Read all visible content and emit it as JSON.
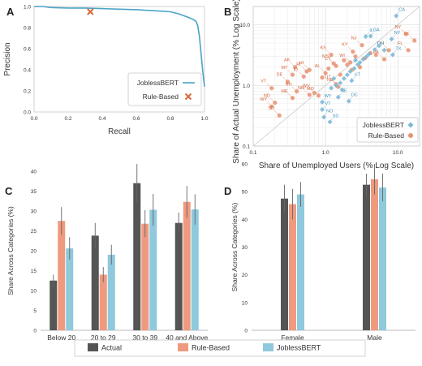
{
  "colors": {
    "actual": "#555555",
    "rule_based": "#ef9a7f",
    "joblessbert": "#8ec9dd",
    "pr_line": "#4aa3c6",
    "scatter_blue": "#7db9d6",
    "scatter_red": "#e69272",
    "label_blue": "#3d92bf",
    "label_red": "#d4633b",
    "error_bar": "#666666",
    "marker_x": "#d86a3c"
  },
  "chart_data": [
    {
      "id": "A",
      "type": "line",
      "panel_label": "A",
      "xlabel": "Recall",
      "ylabel": "Precision",
      "xlim": [
        0,
        1
      ],
      "ylim": [
        0,
        1
      ],
      "xticks": [
        "0.0",
        "0.2",
        "0.4",
        "0.6",
        "0.8",
        "1.0"
      ],
      "yticks": [
        "0.0",
        "0.2",
        "0.4",
        "0.6",
        "0.8",
        "1.0"
      ],
      "series": [
        {
          "name": "JoblessBERT",
          "x": [
            0.0,
            0.05,
            0.1,
            0.2,
            0.3,
            0.4,
            0.5,
            0.6,
            0.7,
            0.8,
            0.85,
            0.9,
            0.93,
            0.95,
            0.96,
            0.97,
            0.98,
            0.99,
            1.0
          ],
          "y": [
            1.0,
            1.0,
            0.99,
            0.985,
            0.985,
            0.98,
            0.975,
            0.97,
            0.96,
            0.95,
            0.93,
            0.9,
            0.88,
            0.86,
            0.82,
            0.72,
            0.55,
            0.38,
            0.24
          ]
        },
        {
          "name": "Rule-Based",
          "x": [
            0.33
          ],
          "y": [
            0.95
          ]
        }
      ],
      "legend": [
        "JoblessBERT",
        "Rule-Based"
      ],
      "legend_position": "bottom-right",
      "grid": false
    },
    {
      "id": "B",
      "type": "scatter",
      "panel_label": "B",
      "xlabel": "Share of Unemployed Users (% Log Scale)",
      "ylabel": "Share of Actual Unemployment (% Log Scale)",
      "xscale": "log",
      "yscale": "log",
      "xlim": [
        0.1,
        20
      ],
      "ylim": [
        0.1,
        20
      ],
      "xticks": [
        "0.1",
        "1.0",
        "10.0"
      ],
      "yticks": [
        "0.1",
        "1.0",
        "10.0"
      ],
      "grid": true,
      "diagonal": true,
      "legend": [
        "JoblessBERT",
        "Rule-Based"
      ],
      "legend_position": "bottom-right",
      "series": [
        {
          "name": "JoblessBERT",
          "points": [
            {
              "label": "CA",
              "x": 9.5,
              "y": 14
            },
            {
              "label": "GA",
              "x": 4.2,
              "y": 6.5
            },
            {
              "label": "IL",
              "x": 3.6,
              "y": 6.4
            },
            {
              "label": "NY",
              "x": 8.2,
              "y": 5.8
            },
            {
              "label": "OH",
              "x": 4.8,
              "y": 3.9
            },
            {
              "label": "TX",
              "x": 8.5,
              "y": 3.2
            },
            {
              "label": "UT",
              "x": 2.3,
              "y": 1.2
            },
            {
              "label": "NE",
              "x": 1.5,
              "y": 0.64
            },
            {
              "label": "DC",
              "x": 2.1,
              "y": 0.55
            },
            {
              "label": "VT",
              "x": 0.9,
              "y": 0.4
            },
            {
              "label": "NO",
              "x": 0.95,
              "y": 0.3
            },
            {
              "label": "SD",
              "x": 1.15,
              "y": 0.25
            },
            {
              "label": "WY",
              "x": 0.9,
              "y": 0.53
            },
            {
              "label": "",
              "x": 1.2,
              "y": 0.9
            },
            {
              "label": "",
              "x": 1.4,
              "y": 1.0
            },
            {
              "label": "",
              "x": 1.6,
              "y": 1.1
            },
            {
              "label": "",
              "x": 1.8,
              "y": 1.3
            },
            {
              "label": "",
              "x": 2.0,
              "y": 1.5
            },
            {
              "label": "",
              "x": 2.2,
              "y": 1.7
            },
            {
              "label": "",
              "x": 2.5,
              "y": 1.9
            },
            {
              "label": "",
              "x": 2.8,
              "y": 2.2
            },
            {
              "label": "",
              "x": 3.0,
              "y": 2.4
            },
            {
              "label": "",
              "x": 3.3,
              "y": 2.7
            },
            {
              "label": "",
              "x": 3.7,
              "y": 3.0
            },
            {
              "label": "",
              "x": 4.0,
              "y": 3.3
            },
            {
              "label": "",
              "x": 1.3,
              "y": 1.3
            },
            {
              "label": "",
              "x": 1.7,
              "y": 0.85
            },
            {
              "label": "",
              "x": 2.6,
              "y": 2.6
            },
            {
              "label": "",
              "x": 5.5,
              "y": 4.5
            },
            {
              "label": "",
              "x": 6.5,
              "y": 3.8
            }
          ]
        },
        {
          "name": "Rule-Based",
          "points": [
            {
              "label": "NY",
              "x": 13,
              "y": 7.0
            },
            {
              "label": "TX",
              "x": 17,
              "y": 5.5
            },
            {
              "label": "FL",
              "x": 14,
              "y": 3.8
            },
            {
              "label": "OH",
              "x": 7.5,
              "y": 3.8
            },
            {
              "label": "PA",
              "x": 6.5,
              "y": 2.7
            },
            {
              "label": "NJ",
              "x": 3.2,
              "y": 4.6
            },
            {
              "label": "KY",
              "x": 2.4,
              "y": 3.6
            },
            {
              "label": "KS",
              "x": 1.2,
              "y": 3.2
            },
            {
              "label": "WI",
              "x": 2.2,
              "y": 2.4
            },
            {
              "label": "MS",
              "x": 1.3,
              "y": 2.3
            },
            {
              "label": "CT",
              "x": 1.4,
              "y": 2.1
            },
            {
              "label": "AK",
              "x": 0.38,
              "y": 2.0
            },
            {
              "label": "HI",
              "x": 0.6,
              "y": 1.8
            },
            {
              "label": "RI",
              "x": 0.55,
              "y": 1.7
            },
            {
              "label": "MT",
              "x": 0.35,
              "y": 1.5
            },
            {
              "label": "ID",
              "x": 0.5,
              "y": 1.4
            },
            {
              "label": "AL",
              "x": 1.0,
              "y": 1.6
            },
            {
              "label": "DE",
              "x": 0.3,
              "y": 1.15
            },
            {
              "label": "UT",
              "x": 1.4,
              "y": 1.05
            },
            {
              "label": "NE",
              "x": 1.5,
              "y": 0.95
            },
            {
              "label": "VT",
              "x": 0.18,
              "y": 0.9
            },
            {
              "label": "NH",
              "x": 0.4,
              "y": 0.8
            },
            {
              "label": "WV",
              "x": 0.7,
              "y": 0.75
            },
            {
              "label": "NM",
              "x": 0.6,
              "y": 0.7
            },
            {
              "label": "MO",
              "x": 0.8,
              "y": 0.68
            },
            {
              "label": "ME",
              "x": 0.35,
              "y": 0.62
            },
            {
              "label": "ND",
              "x": 0.2,
              "y": 0.52
            },
            {
              "label": "WY",
              "x": 0.18,
              "y": 0.45
            },
            {
              "label": "SD",
              "x": 0.23,
              "y": 0.32
            },
            {
              "label": "",
              "x": 1.8,
              "y": 2.6
            },
            {
              "label": "",
              "x": 2.0,
              "y": 2.2
            },
            {
              "label": "",
              "x": 2.6,
              "y": 3.0
            },
            {
              "label": "",
              "x": 3.0,
              "y": 2.0
            },
            {
              "label": "",
              "x": 3.5,
              "y": 2.8
            },
            {
              "label": "",
              "x": 4.2,
              "y": 3.4
            },
            {
              "label": "",
              "x": 5.0,
              "y": 3.2
            },
            {
              "label": "",
              "x": 1.1,
              "y": 1.9
            },
            {
              "label": "",
              "x": 0.9,
              "y": 1.35
            },
            {
              "label": "",
              "x": 1.6,
              "y": 1.5
            },
            {
              "label": "",
              "x": 2.3,
              "y": 1.8
            }
          ]
        }
      ]
    },
    {
      "id": "C",
      "type": "bar",
      "panel_label": "C",
      "ylabel": "Share Across Categories (%)",
      "categories": [
        "Below 20",
        "20 to 29",
        "30 to 39",
        "40 and Above"
      ],
      "ylim": [
        0,
        40
      ],
      "yticks": [
        "0",
        "5",
        "10",
        "15",
        "20",
        "25",
        "30",
        "35",
        "40"
      ],
      "series": [
        {
          "name": "Actual",
          "values": [
            12.5,
            23.8,
            37,
            27
          ],
          "errors": [
            1.5,
            3.2,
            4.8,
            2.6
          ]
        },
        {
          "name": "Rule-Based",
          "values": [
            27.5,
            14,
            26.8,
            32.3
          ],
          "errors": [
            3.5,
            1.9,
            3.4,
            4.0
          ]
        },
        {
          "name": "JoblessBERT",
          "values": [
            20.6,
            19,
            30.3,
            30.4
          ],
          "errors": [
            2.8,
            2.5,
            4.0,
            3.8
          ]
        }
      ]
    },
    {
      "id": "D",
      "type": "bar",
      "panel_label": "D",
      "ylabel": "Share Across Categories (%)",
      "categories": [
        "Female",
        "Male"
      ],
      "ylim": [
        0,
        60
      ],
      "yticks": [
        "0",
        "10",
        "20",
        "30",
        "40",
        "50",
        "60"
      ],
      "series": [
        {
          "name": "Actual",
          "values": [
            47.5,
            52.5
          ],
          "errors": [
            5.0,
            4.0
          ]
        },
        {
          "name": "Rule-Based",
          "values": [
            45.5,
            54.5
          ],
          "errors": [
            5.5,
            5.5
          ]
        },
        {
          "name": "JoblessBERT",
          "values": [
            49,
            51.5
          ],
          "errors": [
            4.5,
            5.0
          ]
        }
      ]
    }
  ],
  "bottom_legend": [
    "Actual",
    "Rule-Based",
    "JoblessBERT"
  ]
}
